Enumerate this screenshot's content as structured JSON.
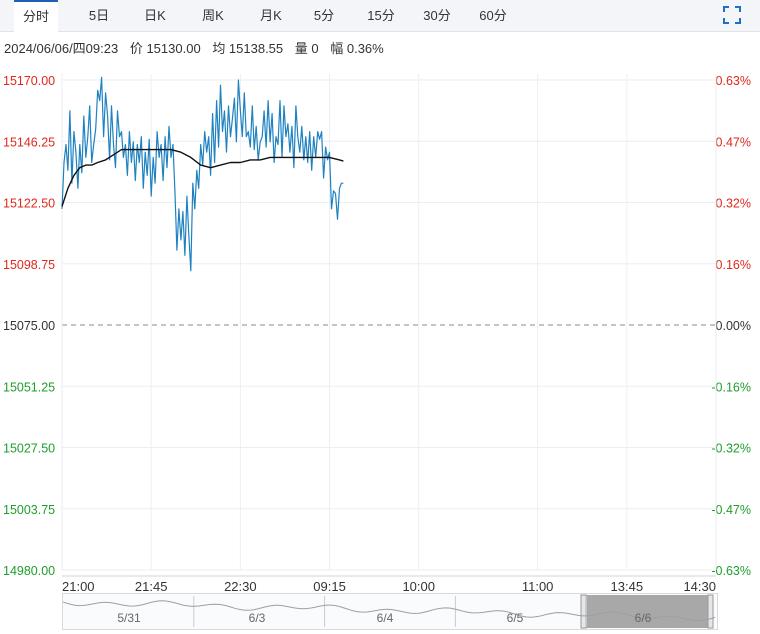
{
  "tabs": [
    {
      "label": "分时",
      "active": true
    },
    {
      "label": "5日",
      "active": false
    },
    {
      "label": "日K",
      "active": false
    },
    {
      "label": "周K",
      "active": false
    },
    {
      "label": "月K",
      "active": false
    },
    {
      "label": "5分",
      "active": false
    },
    {
      "label": "15分",
      "active": false
    },
    {
      "label": "30分",
      "active": false
    },
    {
      "label": "60分",
      "active": false
    }
  ],
  "expand_icon": "expand-icon",
  "info": {
    "datetime": "2024/06/06/四09:23",
    "price": "价 15130.00",
    "avg": "均 15138.55",
    "volume": "量 0",
    "change": "幅 0.36%"
  },
  "colors": {
    "up": "#e0281d",
    "down": "#1f9e2b",
    "neutral": "#333333",
    "price_line": "#1f82c0",
    "avg_line": "#111111",
    "grid": "#eceef2",
    "nav_selected": "#a8a8a8"
  },
  "chart_data": {
    "type": "line",
    "prev_close": 15075.0,
    "ylim": [
      14980.0,
      15170.0
    ],
    "y_ticks_left": [
      "15170.00",
      "15146.25",
      "15122.50",
      "15098.75",
      "15075.00",
      "15051.25",
      "15027.50",
      "15003.75",
      "14980.00"
    ],
    "y_ticks_right": [
      "0.63%",
      "0.47%",
      "0.32%",
      "0.16%",
      "0.00%",
      "-0.16%",
      "-0.32%",
      "-0.47%",
      "-0.63%"
    ],
    "x_ticks": [
      "21:00",
      "21:45",
      "22:30",
      "09:15",
      "10:00",
      "11:00",
      "13:45",
      "14:30"
    ],
    "x_tick_positions": [
      0,
      45,
      90,
      135,
      180,
      240,
      285,
      330
    ],
    "x_range": [
      0,
      330
    ],
    "series": [
      {
        "kind": "price",
        "x": [
          0,
          1,
          2,
          3,
          4,
          5,
          6,
          7,
          8,
          9,
          10,
          11,
          12,
          13,
          14,
          15,
          16,
          17,
          18,
          19,
          20,
          21,
          22,
          23,
          24,
          25,
          26,
          27,
          28,
          29,
          30,
          31,
          32,
          33,
          34,
          35,
          36,
          37,
          38,
          39,
          40,
          41,
          42,
          43,
          44,
          45,
          46,
          47,
          48,
          49,
          50,
          51,
          52,
          53,
          54,
          55,
          56,
          57,
          58,
          59,
          60,
          61,
          62,
          63,
          64,
          65,
          66,
          67,
          68,
          69,
          70,
          71,
          72,
          73,
          74,
          75,
          76,
          77,
          78,
          79,
          80,
          81,
          82,
          83,
          84,
          85,
          86,
          87,
          88,
          89,
          90,
          91,
          92,
          93,
          94,
          95,
          96,
          97,
          98,
          99,
          100,
          101,
          102,
          103,
          104,
          105,
          106,
          107,
          108,
          109,
          110,
          111,
          112,
          113,
          114,
          115,
          116,
          117,
          118,
          119,
          120,
          121,
          122,
          123,
          124,
          125,
          126,
          127,
          128,
          129,
          130,
          131,
          132,
          133,
          134,
          135,
          136,
          137,
          138,
          139,
          140,
          141,
          142
        ],
        "values": [
          15120,
          15138,
          15145,
          15135,
          15158,
          15130,
          15150,
          15142,
          15128,
          15145,
          15134,
          15156,
          15140,
          15148,
          15160,
          15138,
          15145,
          15151,
          15166,
          15162,
          15171,
          15148,
          15165,
          15156,
          15139,
          15160,
          15145,
          15136,
          15158,
          15148,
          15150,
          15140,
          15145,
          15133,
          15150,
          15138,
          15146,
          15131,
          15145,
          15138,
          15148,
          15128,
          15142,
          15133,
          15147,
          15125,
          15140,
          15130,
          15150,
          15140,
          15145,
          15131,
          15148,
          15136,
          15152,
          15140,
          15145,
          15126,
          15104,
          15120,
          15108,
          15119,
          15102,
          15125,
          15110,
          15096,
          15130,
          15120,
          15135,
          15128,
          15145,
          15137,
          15150,
          15142,
          15148,
          15133,
          15157,
          15138,
          15162,
          15144,
          15168,
          15150,
          15158,
          15142,
          15160,
          15148,
          15155,
          15163,
          15146,
          15170,
          15158,
          15148,
          15165,
          15148,
          15150,
          15144,
          15160,
          15143,
          15152,
          15139,
          15146,
          15148,
          15158,
          15144,
          15162,
          15146,
          15157,
          15138,
          15148,
          15145,
          15162,
          15140,
          15160,
          15148,
          15153,
          15142,
          15152,
          15136,
          15160,
          15148,
          15142,
          15152,
          15139,
          15148,
          15138,
          15150,
          15135,
          15148,
          15140,
          15150,
          15147,
          15150,
          15132,
          15144,
          15139,
          15142,
          15120,
          15127,
          15126,
          15116,
          15128,
          15130,
          15130
        ]
      },
      {
        "kind": "average",
        "x": [
          0,
          3,
          6,
          9,
          12,
          15,
          18,
          22,
          26,
          30,
          34,
          38,
          42,
          46,
          50,
          55,
          60,
          65,
          70,
          75,
          80,
          85,
          90,
          95,
          100,
          105,
          110,
          115,
          120,
          125,
          130,
          135,
          140,
          142
        ],
        "values": [
          15121,
          15128,
          15133,
          15136,
          15137,
          15137,
          15138,
          15139,
          15141,
          15143,
          15143,
          15143,
          15143,
          15143,
          15143,
          15143,
          15142,
          15140,
          15137,
          15136,
          15137,
          15138,
          15138,
          15139,
          15139,
          15140,
          15140,
          15140,
          15140,
          15140,
          15140,
          15140,
          15139,
          15138.55
        ]
      }
    ],
    "navigator": {
      "dates": [
        "5/31",
        "6/3",
        "6/4",
        "6/5",
        "6/6"
      ],
      "selected": "6/6"
    }
  }
}
